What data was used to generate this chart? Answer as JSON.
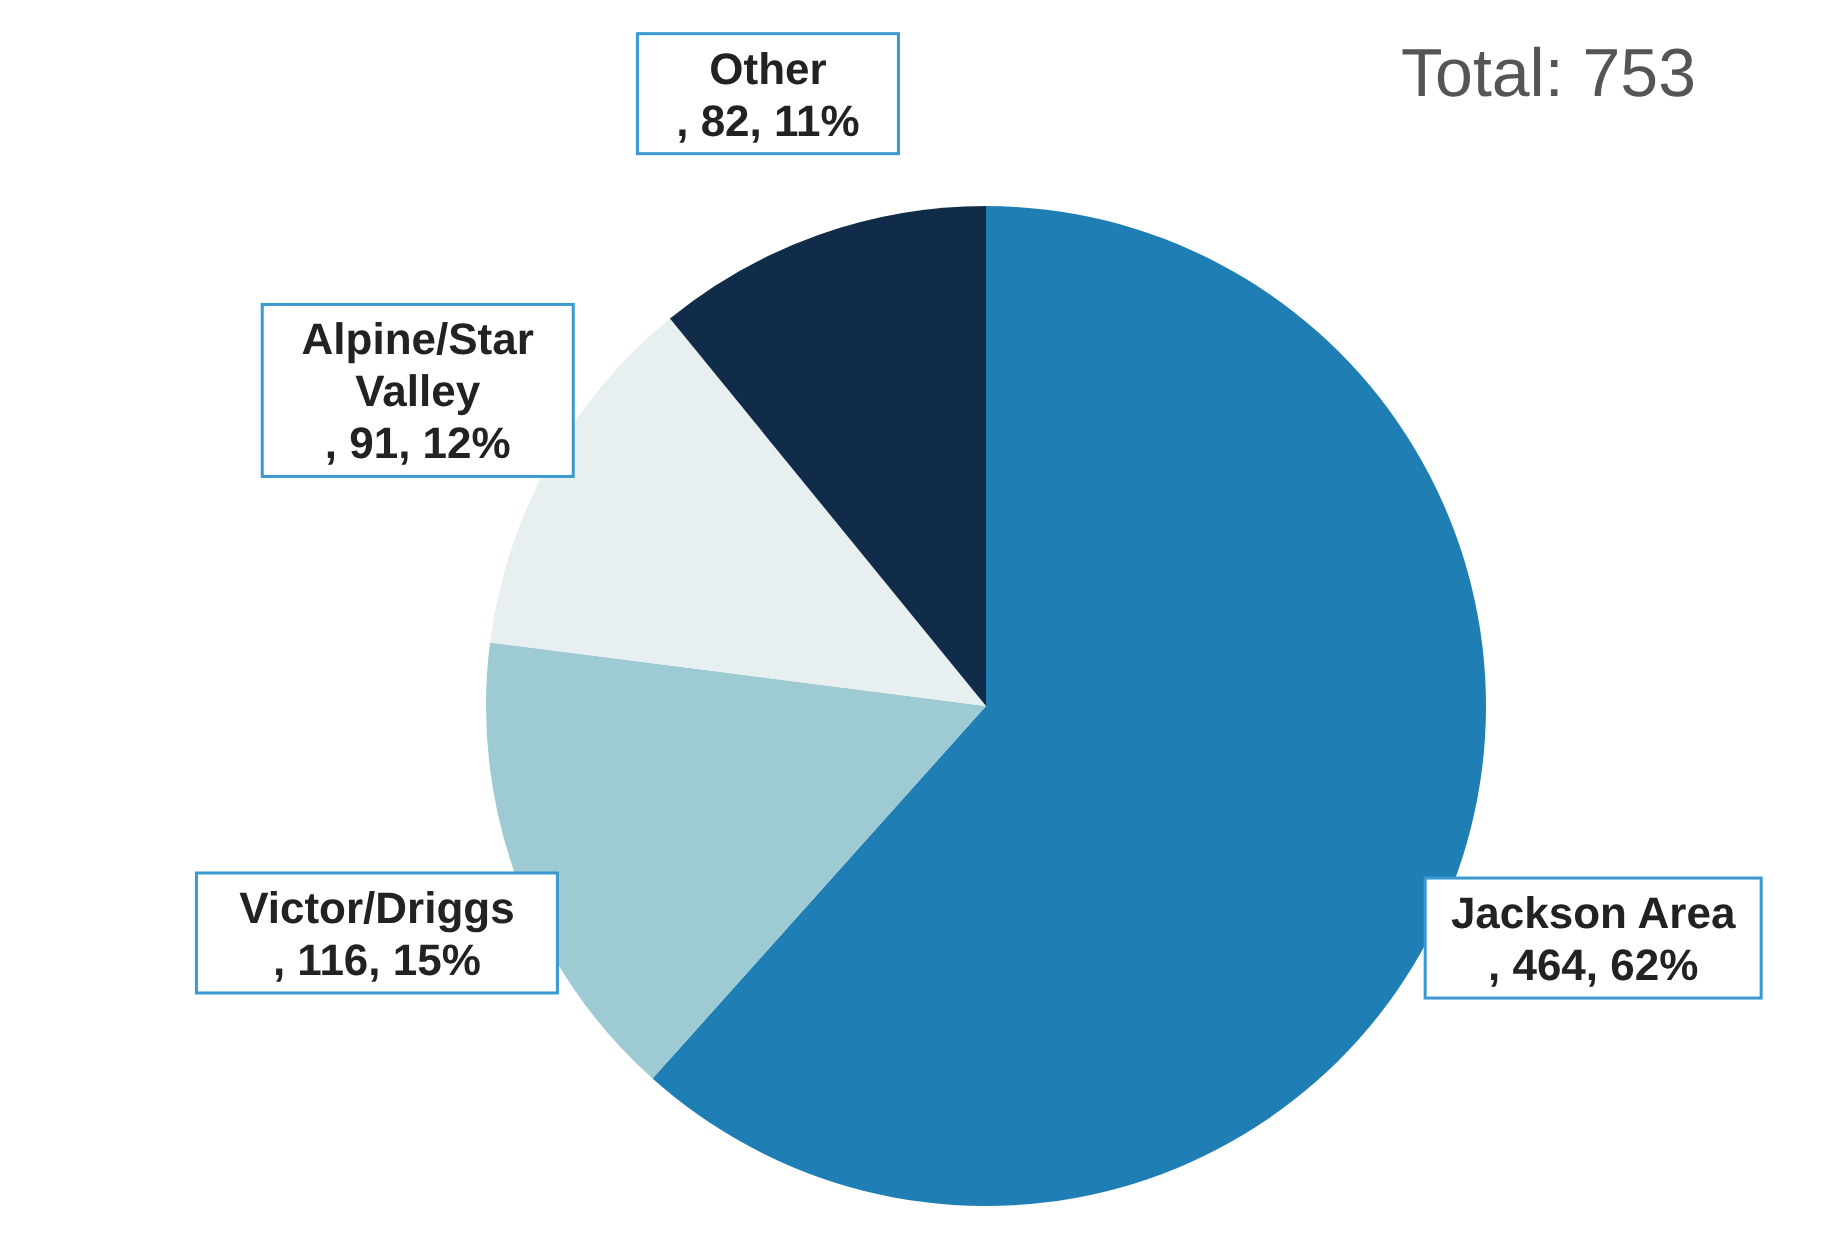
{
  "chart_data": {
    "type": "pie",
    "categories": [
      "Jackson Area",
      "Victor/Driggs",
      "Alpine/Star Valley",
      "Other"
    ],
    "values": [
      464,
      116,
      91,
      82
    ],
    "colors": [
      "#1f7fb5",
      "#9ecbd3",
      "#e8eff0",
      "#112c48"
    ],
    "value_labels": [
      ", 464, 62%",
      ", 116, 15%",
      ", 91, 12%",
      ", 82, 11%"
    ],
    "annotations": [
      "Total: 753"
    ],
    "legend": false
  }
}
